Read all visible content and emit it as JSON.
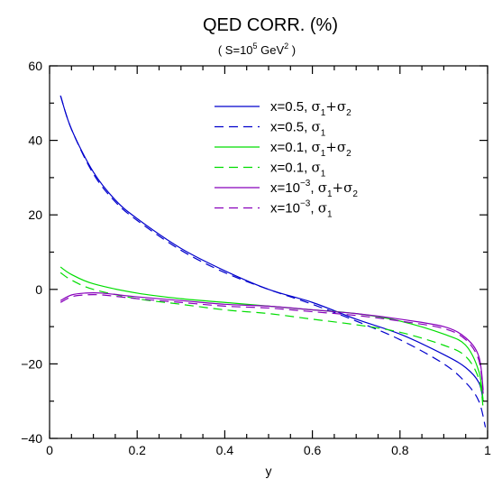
{
  "chart_data": {
    "type": "line",
    "title": "QED CORR. (%)",
    "subtitle": {
      "pre": "( S=10",
      "exp": "5",
      "mid": " GeV",
      "exp2": "2",
      "post": " )"
    },
    "xlabel": "y",
    "ylabel": "",
    "xlim": [
      0,
      1
    ],
    "ylim": [
      -40,
      60
    ],
    "xticks": [
      0,
      0.2,
      0.4,
      0.6,
      0.8,
      1
    ],
    "xtick_labels": [
      "0",
      "0.2",
      "0.4",
      "0.6",
      "0.8",
      "1"
    ],
    "yticks": [
      -40,
      -20,
      0,
      20,
      40,
      60
    ],
    "ytick_labels": [
      "−40",
      "−20",
      "0",
      "20",
      "40",
      "60"
    ],
    "grid": false,
    "legend_position": "top-right",
    "series": [
      {
        "color": "#0000cc",
        "dash": "solid",
        "label": {
          "x": "x=0.5",
          "exp": "",
          "sigma": "σ",
          "sub1": "1",
          "plus": "+σ",
          "sub2": "2"
        },
        "x": [
          0.025,
          0.05,
          0.1,
          0.15,
          0.2,
          0.3,
          0.4,
          0.5,
          0.6,
          0.7,
          0.8,
          0.9,
          0.95,
          0.98,
          0.99
        ],
        "y": [
          52,
          43,
          31.5,
          24,
          19,
          11,
          5,
          0,
          -3.5,
          -8,
          -12,
          -17.5,
          -21,
          -25,
          -30
        ]
      },
      {
        "color": "#0000cc",
        "dash": "dashed",
        "label": {
          "x": "x=0.5",
          "exp": "",
          "sigma": "σ",
          "sub1": "1",
          "plus": "",
          "sub2": ""
        },
        "x": [
          0.025,
          0.05,
          0.1,
          0.15,
          0.2,
          0.3,
          0.4,
          0.5,
          0.6,
          0.7,
          0.8,
          0.9,
          0.95,
          0.98,
          0.995
        ],
        "y": [
          52,
          43,
          31,
          23.5,
          18.5,
          10.5,
          4.5,
          0,
          -4,
          -8.5,
          -13.5,
          -20,
          -25,
          -30,
          -37
        ]
      },
      {
        "color": "#00dd00",
        "dash": "solid",
        "label": {
          "x": "x=0.1",
          "exp": "",
          "sigma": "σ",
          "sub1": "1",
          "plus": "+σ",
          "sub2": "2"
        },
        "x": [
          0.025,
          0.05,
          0.1,
          0.2,
          0.3,
          0.4,
          0.5,
          0.6,
          0.7,
          0.8,
          0.9,
          0.95,
          0.98,
          0.99
        ],
        "y": [
          6,
          4,
          1.5,
          -1,
          -2.5,
          -3.5,
          -4.5,
          -5.5,
          -6.5,
          -8.5,
          -12,
          -15,
          -22,
          -30
        ]
      },
      {
        "color": "#00dd00",
        "dash": "dashed",
        "label": {
          "x": "x=0.1",
          "exp": "",
          "sigma": "σ",
          "sub1": "1",
          "plus": "",
          "sub2": ""
        },
        "x": [
          0.025,
          0.05,
          0.1,
          0.2,
          0.3,
          0.4,
          0.5,
          0.6,
          0.7,
          0.8,
          0.9,
          0.95,
          0.98,
          0.99
        ],
        "y": [
          4.5,
          2.5,
          0,
          -2.5,
          -4,
          -5.5,
          -6.5,
          -8,
          -9.5,
          -11.5,
          -15,
          -18,
          -24,
          -32
        ]
      },
      {
        "color": "#8800bb",
        "dash": "solid",
        "label": {
          "x": "x=10",
          "exp": "−3",
          "sigma": "σ",
          "sub1": "1",
          "plus": "+σ",
          "sub2": "2"
        },
        "x": [
          0.025,
          0.05,
          0.08,
          0.12,
          0.2,
          0.3,
          0.4,
          0.5,
          0.6,
          0.7,
          0.8,
          0.9,
          0.95,
          0.98,
          0.99
        ],
        "y": [
          -3,
          -1.5,
          -1,
          -1,
          -2,
          -3,
          -4,
          -4.5,
          -5.5,
          -6.5,
          -8,
          -10,
          -13,
          -18,
          -27
        ]
      },
      {
        "color": "#8800bb",
        "dash": "dashed",
        "label": {
          "x": "x=10",
          "exp": "−3",
          "sigma": "σ",
          "sub1": "1",
          "plus": "",
          "sub2": ""
        },
        "x": [
          0.025,
          0.05,
          0.08,
          0.12,
          0.2,
          0.3,
          0.4,
          0.5,
          0.6,
          0.7,
          0.8,
          0.9,
          0.95,
          0.98,
          0.99
        ],
        "y": [
          -3.5,
          -2,
          -1.5,
          -1.5,
          -2.5,
          -3.5,
          -4.5,
          -5,
          -6,
          -7,
          -8.5,
          -10.5,
          -13.5,
          -19,
          -28
        ]
      }
    ]
  }
}
